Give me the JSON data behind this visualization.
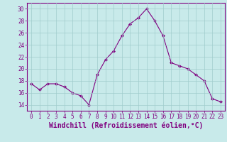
{
  "x": [
    0,
    1,
    2,
    3,
    4,
    5,
    6,
    7,
    8,
    9,
    10,
    11,
    12,
    13,
    14,
    15,
    16,
    17,
    18,
    19,
    20,
    21,
    22,
    23
  ],
  "y": [
    17.5,
    16.5,
    17.5,
    17.5,
    17.0,
    16.0,
    15.5,
    14.0,
    19.0,
    21.5,
    23.0,
    25.5,
    27.5,
    28.5,
    30.0,
    28.0,
    25.5,
    21.0,
    20.5,
    20.0,
    19.0,
    18.0,
    15.0,
    14.5
  ],
  "line_color": "#800080",
  "marker": "D",
  "marker_size": 2,
  "background_color": "#c8eaea",
  "grid_color": "#a0cccc",
  "xlabel": "Windchill (Refroidissement éolien,°C)",
  "xlabel_color": "#800080",
  "ylim": [
    13,
    31
  ],
  "yticks": [
    14,
    16,
    18,
    20,
    22,
    24,
    26,
    28,
    30
  ],
  "xticks": [
    0,
    1,
    2,
    3,
    4,
    5,
    6,
    7,
    8,
    9,
    10,
    11,
    12,
    13,
    14,
    15,
    16,
    17,
    18,
    19,
    20,
    21,
    22,
    23
  ],
  "tick_color": "#800080",
  "tick_fontsize": 5.5,
  "xlabel_fontsize": 7.0,
  "spine_color": "#800080",
  "linewidth": 0.8
}
